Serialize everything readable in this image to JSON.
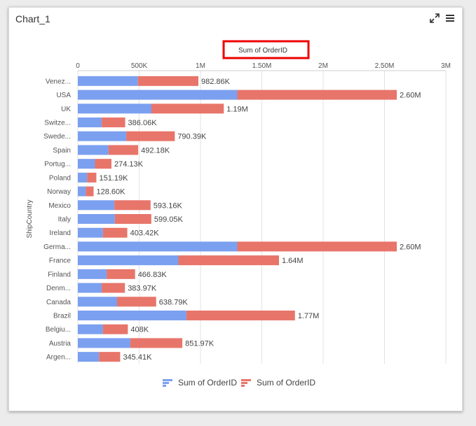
{
  "widget": {
    "title": "Chart_1"
  },
  "toolbar": {
    "expand_icon": "expand-icon",
    "menu_icon": "hamburger-menu-icon"
  },
  "chart_data": {
    "type": "bar",
    "orientation": "horizontal",
    "stacked": true,
    "title": "Sum of OrderID",
    "ylabel": "ShipCountry",
    "xlabel": "",
    "xlim": [
      0,
      3000000
    ],
    "x_tick_labels": [
      "0",
      "500K",
      "1M",
      "1.50M",
      "2M",
      "2.50M",
      "3M"
    ],
    "grid": true,
    "legend_position": "bottom",
    "categories": [
      "Venez...",
      "USA",
      "UK",
      "Switze...",
      "Swede...",
      "Spain",
      "Portug...",
      "Poland",
      "Norway",
      "Mexico",
      "Italy",
      "Ireland",
      "Germa...",
      "France",
      "Finland",
      "Denm...",
      "Canada",
      "Brazil",
      "Belgiu...",
      "Austria",
      "Argen..."
    ],
    "series": [
      {
        "name": "Sum of OrderID",
        "color": "#7ba0f0",
        "values": [
          490000,
          1300000,
          600000,
          195000,
          395000,
          250000,
          140000,
          76000,
          65000,
          298000,
          302000,
          205000,
          1300000,
          820000,
          235000,
          195000,
          320000,
          885000,
          205000,
          428000,
          173000
        ]
      },
      {
        "name": "Sum of OrderID",
        "color": "#e8756a",
        "values": [
          492860,
          1300000,
          590000,
          191060,
          395390,
          242180,
          134130,
          75190,
          63600,
          295160,
          297050,
          198420,
          1300000,
          820000,
          231830,
          188970,
          318790,
          885000,
          203000,
          423970,
          172410
        ]
      }
    ],
    "totals_labels": [
      "982.86K",
      "2.60M",
      "1.19M",
      "386.06K",
      "790.39K",
      "492.18K",
      "274.13K",
      "151.19K",
      "128.60K",
      "593.16K",
      "599.05K",
      "403.42K",
      "2.60M",
      "1.64M",
      "466.83K",
      "383.97K",
      "638.79K",
      "1.77M",
      "408K",
      "851.97K",
      "345.41K"
    ]
  }
}
